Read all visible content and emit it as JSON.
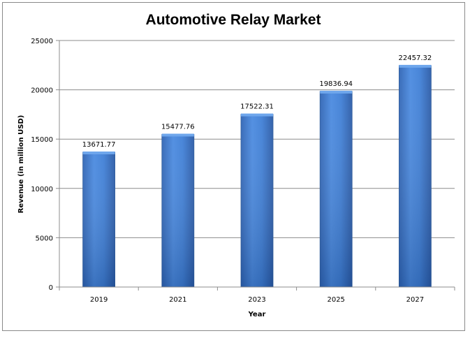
{
  "chart_data": {
    "type": "bar",
    "title": "Automotive Relay Market",
    "xlabel": "Year",
    "ylabel": "Revenue (in million USD)",
    "categories": [
      "2019",
      "2021",
      "2023",
      "2025",
      "2027"
    ],
    "values": [
      13671.77,
      15477.76,
      17522.31,
      19836.94,
      22457.32
    ],
    "data_labels": [
      "13671.77",
      "15477.76",
      "17522.31",
      "19836.94",
      "22457.32"
    ],
    "ylim": [
      0,
      25000
    ],
    "yticks": [
      0,
      5000,
      10000,
      15000,
      20000,
      25000
    ],
    "grid": true,
    "legend": "none",
    "colors": {
      "bar_top": "#4f8fe0",
      "bar_mid": "#3a78cf",
      "bar_bottom": "#2a5aa6",
      "bar_edge": "#2c5a9a",
      "grid": "#8c8c8c"
    }
  }
}
